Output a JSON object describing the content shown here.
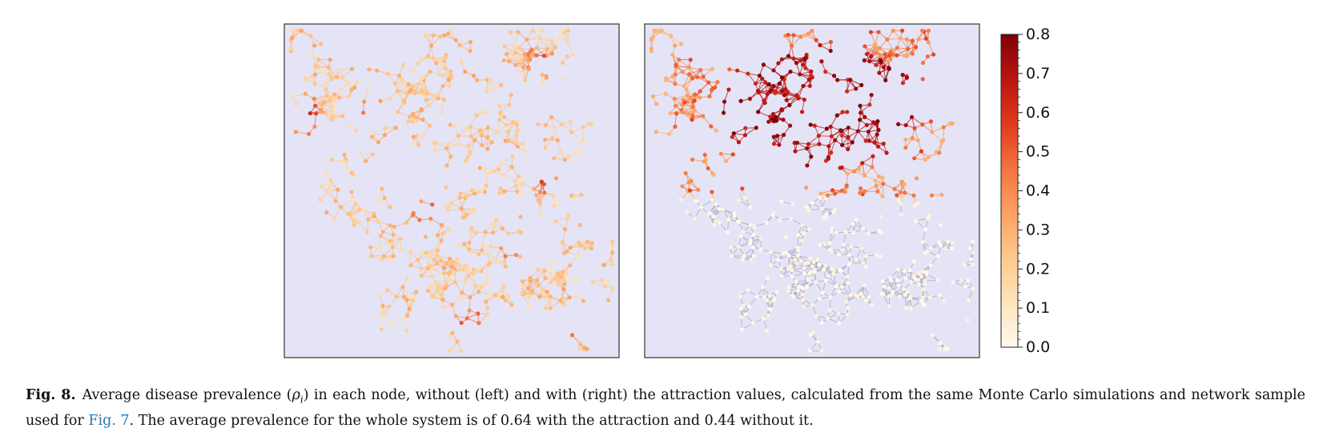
{
  "figure": {
    "colorbar": {
      "min": 0.0,
      "max": 0.8,
      "ticks": [
        "0.8",
        "0.7",
        "0.6",
        "0.5",
        "0.4",
        "0.3",
        "0.2",
        "0.1",
        "0.0"
      ],
      "colormap": [
        "#fffaf0",
        "#fee4bc",
        "#fdc98d",
        "#fca262",
        "#f4733e",
        "#e03a1c",
        "#bb1411",
        "#7e0008"
      ]
    },
    "panels": [
      {
        "id": "left",
        "description_in_caption": "without (left)",
        "background": "#e4e4f6"
      },
      {
        "id": "right",
        "description_in_caption": "with (right)",
        "background": "#e4e4f6"
      }
    ]
  },
  "caption": {
    "label": "Fig. 8.",
    "text_part1": "Average disease prevalence (",
    "rho": "ρ",
    "rho_sub": "i",
    "text_part2": ") in each node, without (left) and with (right) the attraction values, calculated from the same Monte Carlo simulations and network sample used for ",
    "ref": "Fig. 7",
    "text_part3": ". The average prevalence for the whole system is of 0.64 with the attraction and 0.44 without it."
  }
}
